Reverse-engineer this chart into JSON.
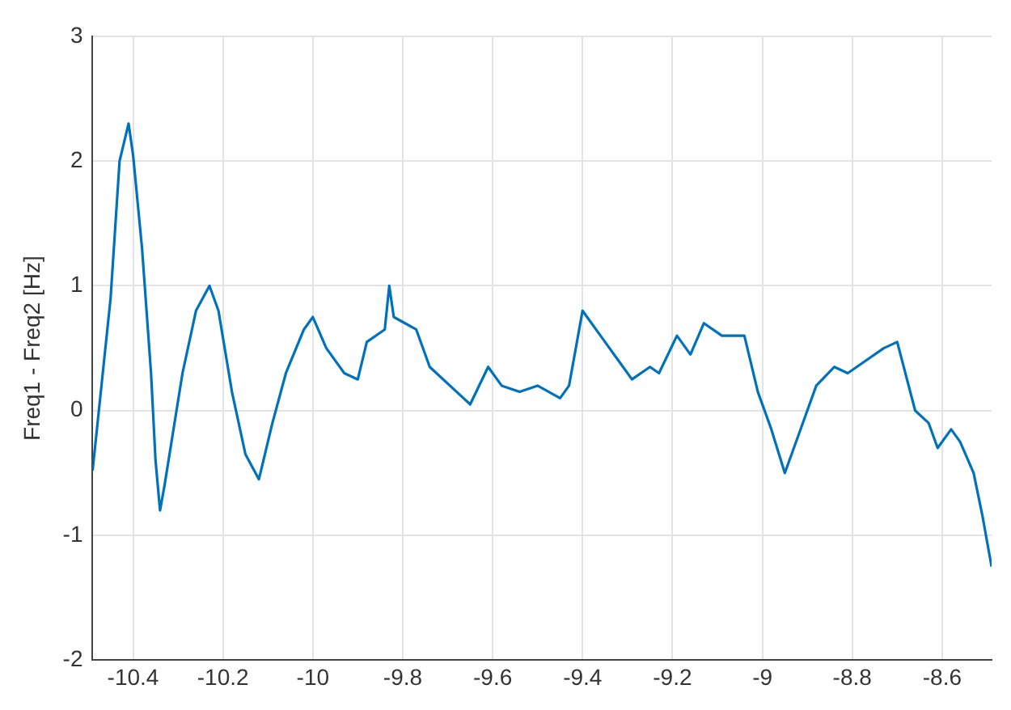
{
  "chart_data": {
    "type": "line",
    "ylabel": "Freq1 - Freq2 [Hz]",
    "xlim": [
      -10.49,
      -8.49
    ],
    "xticks": [
      {
        "value": -10.4,
        "label": "-10.4"
      },
      {
        "value": -10.2,
        "label": "-10.2"
      },
      {
        "value": -10,
        "label": "-10"
      },
      {
        "value": -9.8,
        "label": "-9.8"
      },
      {
        "value": -9.6,
        "label": "-9.6"
      },
      {
        "value": -9.4,
        "label": "-9.4"
      },
      {
        "value": -9.2,
        "label": "-9.2"
      },
      {
        "value": -9,
        "label": "-9"
      },
      {
        "value": -8.8,
        "label": "-8.8"
      },
      {
        "value": -8.6,
        "label": "-8.6"
      }
    ],
    "ylim": [
      -2,
      3
    ],
    "yticks": [
      -2,
      -1,
      0,
      1,
      2,
      3
    ],
    "grid": true,
    "legend": false,
    "marker": "none",
    "line_style": "solid",
    "series": [
      {
        "color": "#0072bd",
        "x": [
          -10.49,
          -10.45,
          -10.43,
          -10.41,
          -10.4,
          -10.38,
          -10.36,
          -10.35,
          -10.34,
          -10.33,
          -10.29,
          -10.26,
          -10.23,
          -10.21,
          -10.18,
          -10.15,
          -10.12,
          -10.09,
          -10.06,
          -10.02,
          -10.0,
          -9.97,
          -9.93,
          -9.9,
          -9.88,
          -9.84,
          -9.83,
          -9.82,
          -9.77,
          -9.74,
          -9.68,
          -9.65,
          -9.61,
          -9.58,
          -9.54,
          -9.5,
          -9.45,
          -9.43,
          -9.4,
          -9.36,
          -9.32,
          -9.29,
          -9.25,
          -9.23,
          -9.19,
          -9.16,
          -9.13,
          -9.09,
          -9.04,
          -9.01,
          -8.98,
          -8.95,
          -8.91,
          -8.88,
          -8.84,
          -8.81,
          -8.77,
          -8.73,
          -8.7,
          -8.66,
          -8.63,
          -8.61,
          -8.58,
          -8.56,
          -8.53,
          -8.51,
          -8.49
        ],
        "values": [
          -0.48,
          0.9,
          2.0,
          2.3,
          2.05,
          1.3,
          0.3,
          -0.4,
          -0.8,
          -0.6,
          0.3,
          0.8,
          1.0,
          0.8,
          0.15,
          -0.35,
          -0.55,
          -0.1,
          0.3,
          0.65,
          0.75,
          0.5,
          0.3,
          0.25,
          0.55,
          0.65,
          1.0,
          0.75,
          0.65,
          0.35,
          0.15,
          0.05,
          0.35,
          0.2,
          0.15,
          0.2,
          0.1,
          0.2,
          0.8,
          0.6,
          0.4,
          0.25,
          0.35,
          0.3,
          0.6,
          0.45,
          0.7,
          0.6,
          0.6,
          0.15,
          -0.15,
          -0.5,
          -0.1,
          0.2,
          0.35,
          0.3,
          0.4,
          0.5,
          0.55,
          0.0,
          -0.1,
          -0.3,
          -0.15,
          -0.25,
          -0.5,
          -0.85,
          -1.25
        ]
      }
    ]
  }
}
